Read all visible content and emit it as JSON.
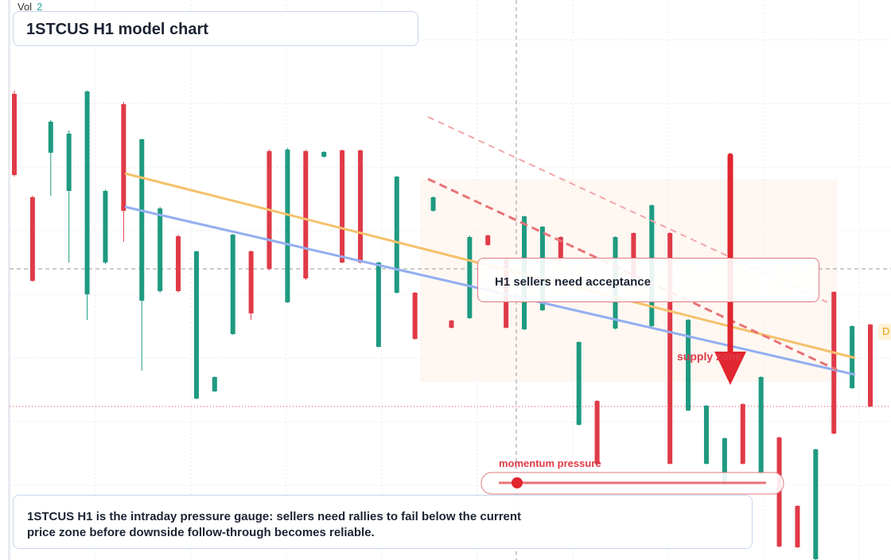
{
  "chart_data": {
    "type": "candlestick",
    "title": "1STCUS H1 model chart",
    "volume_label": "Vol",
    "volume_value": "2",
    "annotation": "H1 sellers need acceptance",
    "zone_label": "supply zone",
    "gauge_label": "momentum pressure",
    "note": "1STCUS H1 is the intraday pressure gauge: sellers need rallies to fail below the current price zone before downside follow-through becomes reliable.",
    "edge_label": "D",
    "up_color": "#1e9a80",
    "down_color": "#e03a48",
    "ylim": [
      0,
      70.4
    ],
    "categories": [
      null,
      null,
      null,
      null,
      null,
      null,
      null,
      null,
      null,
      null,
      null,
      null,
      null,
      null,
      null,
      null,
      null,
      null,
      null,
      null,
      null,
      null,
      null,
      null,
      null,
      null,
      null,
      null,
      null,
      null,
      null,
      null,
      null,
      null,
      null,
      null,
      null,
      null,
      null,
      null,
      null,
      null,
      null,
      null,
      null,
      null,
      null,
      null
    ],
    "open": [
      58.6,
      45.6,
      51.2,
      46.4,
      33.4,
      37.4,
      57.3,
      32.6,
      33.8,
      40.7,
      20.3,
      21.2,
      28.4,
      38.8,
      51.4,
      32.4,
      51.4,
      50.7,
      51.5,
      51.5,
      26.8,
      33.6,
      33.6,
      43.9,
      30.1,
      30.4,
      40.8,
      37.9,
      29.0,
      31.4,
      40.6,
      17.0,
      20.0,
      29.1,
      41.1,
      29.4,
      41.1,
      18.8,
      12.1,
      9.4,
      19.6,
      10.8,
      15.4,
      6.8,
      0.1,
      33.7,
      21.6,
      29.6
    ],
    "high": [
      59.0,
      45.8,
      55.3,
      54.0,
      59.0,
      46.6,
      57.6,
      52.9,
      44.4,
      40.9,
      38.9,
      23.1,
      41.0,
      38.9,
      51.6,
      51.8,
      51.6,
      51.4,
      51.6,
      51.6,
      37.5,
      48.3,
      33.7,
      45.7,
      30.2,
      40.8,
      40.9,
      38.0,
      43.3,
      42.0,
      40.7,
      27.5,
      20.1,
      40.7,
      41.2,
      44.7,
      41.2,
      30.3,
      19.5,
      15.4,
      19.7,
      23.1,
      15.5,
      6.9,
      14.0,
      33.8,
      29.5,
      29.7
    ],
    "low": [
      48.2,
      35.0,
      45.8,
      37.4,
      30.2,
      37.2,
      40.0,
      23.8,
      33.6,
      33.6,
      20.2,
      21.1,
      28.3,
      30.2,
      36.4,
      32.3,
      35.2,
      50.6,
      37.3,
      37.3,
      26.7,
      33.5,
      27.7,
      43.8,
      29.1,
      30.3,
      39.5,
      29.1,
      28.9,
      31.3,
      37.5,
      16.9,
      12.0,
      29.0,
      35.3,
      29.3,
      12.0,
      18.7,
      12.0,
      9.3,
      12.0,
      10.7,
      1.6,
      1.5,
      0.0,
      15.8,
      21.5,
      19.2
    ],
    "close": [
      48.4,
      35.1,
      55.1,
      53.6,
      58.9,
      46.4,
      43.9,
      52.9,
      44.2,
      33.8,
      38.8,
      23.0,
      40.9,
      31.0,
      36.6,
      51.6,
      35.4,
      51.3,
      37.4,
      37.4,
      37.4,
      48.2,
      27.8,
      45.6,
      29.2,
      40.6,
      39.6,
      29.2,
      43.2,
      41.9,
      37.6,
      27.4,
      12.1,
      40.6,
      35.4,
      44.6,
      12.1,
      30.2,
      19.4,
      15.3,
      12.1,
      23.0,
      1.7,
      1.6,
      13.9,
      15.9,
      29.4,
      19.3
    ]
  }
}
